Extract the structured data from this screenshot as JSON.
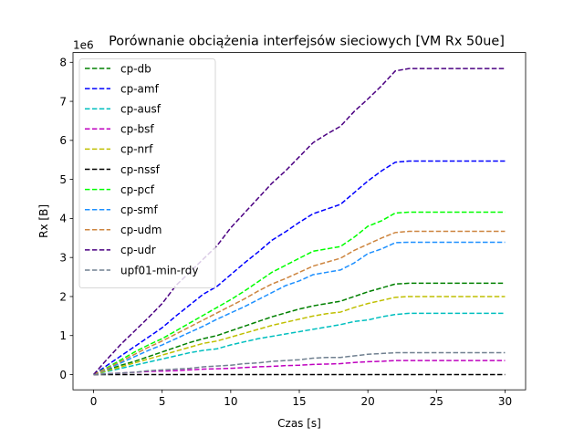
{
  "chart_data": {
    "type": "line",
    "title": "Porównanie obciążenia interfejsów sieciowych [VM Rx 50ue]",
    "xlabel": "Czas [s]",
    "ylabel": "Rx [B]",
    "offset_label": "1e6",
    "xlim": [
      -1.5,
      31.5
    ],
    "ylim": [
      -0.39,
      8.25
    ],
    "xticks": [
      0,
      5,
      10,
      15,
      20,
      25,
      30
    ],
    "yticks": [
      0,
      1,
      2,
      3,
      4,
      5,
      6,
      7,
      8
    ],
    "x": [
      0,
      1,
      2,
      3,
      4,
      5,
      6,
      7,
      8,
      9,
      10,
      11,
      12,
      13,
      14,
      15,
      16,
      17,
      18,
      19,
      20,
      21,
      22,
      23,
      24,
      25,
      26,
      27,
      28,
      29,
      30
    ],
    "grid": false,
    "legend_position": "upper left",
    "series": [
      {
        "name": "cp-db",
        "color": "#008000",
        "values": [
          0,
          0.12,
          0.24,
          0.34,
          0.46,
          0.58,
          0.7,
          0.82,
          0.92,
          1.0,
          1.12,
          1.24,
          1.36,
          1.48,
          1.58,
          1.68,
          1.76,
          1.82,
          1.88,
          2.0,
          2.12,
          2.22,
          2.32,
          2.34,
          2.34,
          2.34,
          2.34,
          2.34,
          2.34,
          2.34,
          2.34
        ]
      },
      {
        "name": "cp-amf",
        "color": "#0000ff",
        "values": [
          0,
          0.24,
          0.48,
          0.72,
          0.96,
          1.2,
          1.5,
          1.78,
          2.06,
          2.26,
          2.56,
          2.86,
          3.14,
          3.44,
          3.66,
          3.9,
          4.12,
          4.24,
          4.36,
          4.66,
          4.96,
          5.22,
          5.44,
          5.47,
          5.47,
          5.47,
          5.47,
          5.47,
          5.47,
          5.47,
          5.47
        ]
      },
      {
        "name": "cp-ausf",
        "color": "#00bfbf",
        "values": [
          0,
          0.08,
          0.16,
          0.24,
          0.32,
          0.4,
          0.48,
          0.56,
          0.62,
          0.66,
          0.76,
          0.84,
          0.92,
          0.98,
          1.04,
          1.1,
          1.16,
          1.22,
          1.28,
          1.36,
          1.4,
          1.48,
          1.54,
          1.57,
          1.57,
          1.57,
          1.57,
          1.57,
          1.57,
          1.57,
          1.57
        ]
      },
      {
        "name": "cp-bsf",
        "color": "#bf00bf",
        "values": [
          0,
          0.02,
          0.04,
          0.06,
          0.08,
          0.09,
          0.1,
          0.12,
          0.14,
          0.15,
          0.16,
          0.18,
          0.2,
          0.21,
          0.23,
          0.24,
          0.26,
          0.27,
          0.28,
          0.31,
          0.33,
          0.34,
          0.36,
          0.36,
          0.36,
          0.36,
          0.36,
          0.36,
          0.36,
          0.36,
          0.36
        ]
      },
      {
        "name": "cp-nrf",
        "color": "#bfbf00",
        "values": [
          0,
          0.1,
          0.2,
          0.3,
          0.4,
          0.5,
          0.6,
          0.7,
          0.8,
          0.86,
          0.96,
          1.06,
          1.16,
          1.26,
          1.34,
          1.42,
          1.5,
          1.56,
          1.6,
          1.72,
          1.82,
          1.9,
          1.98,
          2.0,
          2.0,
          2.0,
          2.0,
          2.0,
          2.0,
          2.0,
          2.0
        ]
      },
      {
        "name": "cp-nssf",
        "color": "#000000",
        "values": [
          0,
          0,
          0,
          0,
          0,
          0,
          0,
          0,
          0,
          0,
          0,
          0,
          0,
          0,
          0,
          0,
          0,
          0,
          0,
          0,
          0,
          0,
          0,
          0,
          0,
          0,
          0,
          0,
          0,
          0,
          0
        ]
      },
      {
        "name": "cp-pcf",
        "color": "#00ff00",
        "values": [
          0,
          0.18,
          0.38,
          0.58,
          0.76,
          0.92,
          1.12,
          1.32,
          1.52,
          1.72,
          1.92,
          2.14,
          2.38,
          2.62,
          2.8,
          2.98,
          3.16,
          3.22,
          3.28,
          3.52,
          3.8,
          3.94,
          4.14,
          4.16,
          4.16,
          4.16,
          4.16,
          4.16,
          4.16,
          4.16,
          4.16
        ]
      },
      {
        "name": "cp-smf",
        "color": "#1e90ff",
        "values": [
          0,
          0.14,
          0.3,
          0.46,
          0.62,
          0.76,
          0.92,
          1.08,
          1.24,
          1.42,
          1.58,
          1.74,
          1.92,
          2.1,
          2.28,
          2.4,
          2.56,
          2.62,
          2.68,
          2.86,
          3.1,
          3.22,
          3.38,
          3.39,
          3.39,
          3.39,
          3.39,
          3.39,
          3.39,
          3.39,
          3.39
        ]
      },
      {
        "name": "cp-udm",
        "color": "#cd853f",
        "values": [
          0,
          0.16,
          0.34,
          0.52,
          0.7,
          0.86,
          1.04,
          1.22,
          1.4,
          1.58,
          1.76,
          1.94,
          2.14,
          2.32,
          2.46,
          2.62,
          2.78,
          2.88,
          2.98,
          3.18,
          3.34,
          3.5,
          3.64,
          3.67,
          3.67,
          3.67,
          3.67,
          3.67,
          3.67,
          3.67,
          3.67
        ]
      },
      {
        "name": "cp-udr",
        "color": "#4b0082",
        "values": [
          0,
          0.4,
          0.78,
          1.12,
          1.46,
          1.82,
          2.28,
          2.62,
          2.96,
          3.3,
          3.76,
          4.14,
          4.52,
          4.9,
          5.22,
          5.58,
          5.94,
          6.16,
          6.36,
          6.74,
          7.06,
          7.4,
          7.78,
          7.84,
          7.84,
          7.84,
          7.84,
          7.84,
          7.84,
          7.84,
          7.84
        ]
      },
      {
        "name": "upf01-min-rdy",
        "color": "#708090",
        "values": [
          0,
          0.02,
          0.04,
          0.06,
          0.1,
          0.12,
          0.14,
          0.16,
          0.2,
          0.22,
          0.24,
          0.28,
          0.3,
          0.34,
          0.36,
          0.38,
          0.42,
          0.44,
          0.44,
          0.48,
          0.52,
          0.54,
          0.56,
          0.56,
          0.56,
          0.56,
          0.56,
          0.56,
          0.56,
          0.56,
          0.56
        ]
      }
    ]
  }
}
